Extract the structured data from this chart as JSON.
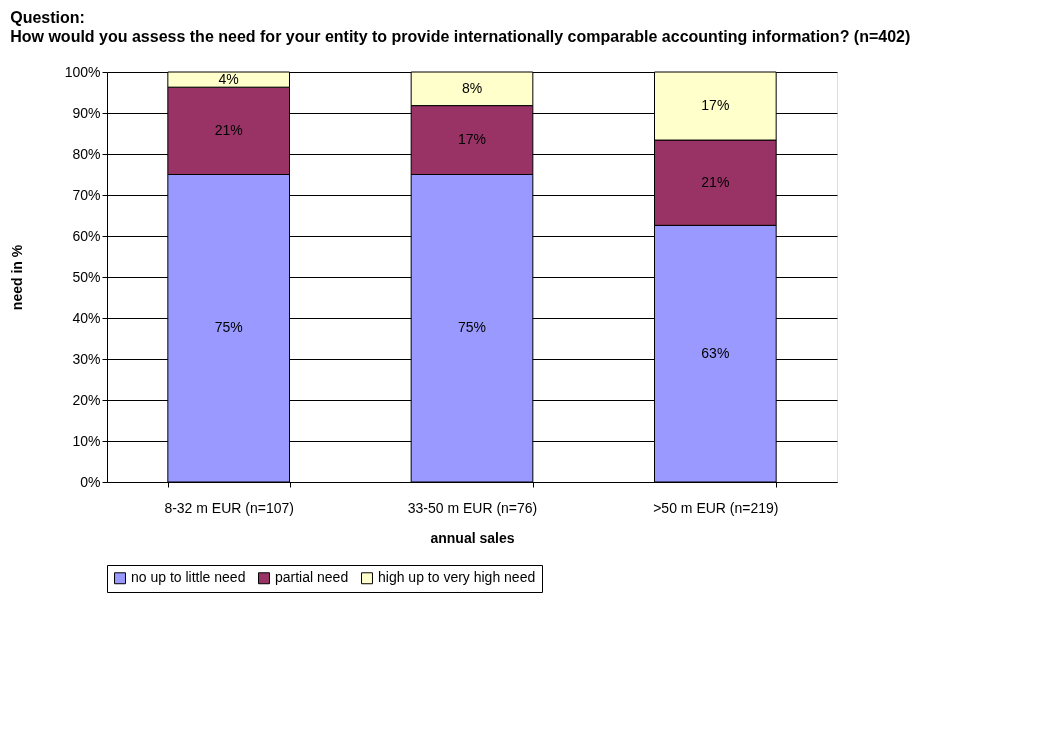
{
  "chart_data": {
    "type": "bar",
    "stacked": true,
    "title": "Question:",
    "subtitle": "How would you assess the need for your entity to provide internationally comparable accounting information? (n=402)",
    "xlabel": "annual sales",
    "ylabel": "need in %",
    "categories": [
      "8-32 m EUR (n=107)",
      "33-50 m EUR (n=76)",
      ">50 m EUR (n=219)"
    ],
    "series": [
      {
        "name": "no up to little need",
        "color": "#9999ff",
        "values": [
          75,
          75,
          62.6
        ],
        "value_labels": [
          "75%",
          "75%",
          "63%"
        ]
      },
      {
        "name": "partial need",
        "color": "#993366",
        "values": [
          21.3,
          16.8,
          20.8
        ],
        "value_labels": [
          "21%",
          "17%",
          "21%"
        ]
      },
      {
        "name": "high up to very high need",
        "color": "#ffffcc",
        "values": [
          3.7,
          8.2,
          16.6
        ],
        "value_labels": [
          "4%",
          "8%",
          "17%"
        ]
      }
    ],
    "ylim": [
      0,
      100
    ],
    "yticks": [
      {
        "value": 0,
        "label": "0%"
      },
      {
        "value": 10,
        "label": "10%"
      },
      {
        "value": 20,
        "label": "20%"
      },
      {
        "value": 30,
        "label": "30%"
      },
      {
        "value": 40,
        "label": "40%"
      },
      {
        "value": 50,
        "label": "50%"
      },
      {
        "value": 60,
        "label": "60%"
      },
      {
        "value": 70,
        "label": "70%"
      },
      {
        "value": 80,
        "label": "80%"
      },
      {
        "value": 90,
        "label": "90%"
      },
      {
        "value": 100,
        "label": "100%"
      }
    ],
    "grid": "y",
    "legend": "bottom"
  }
}
